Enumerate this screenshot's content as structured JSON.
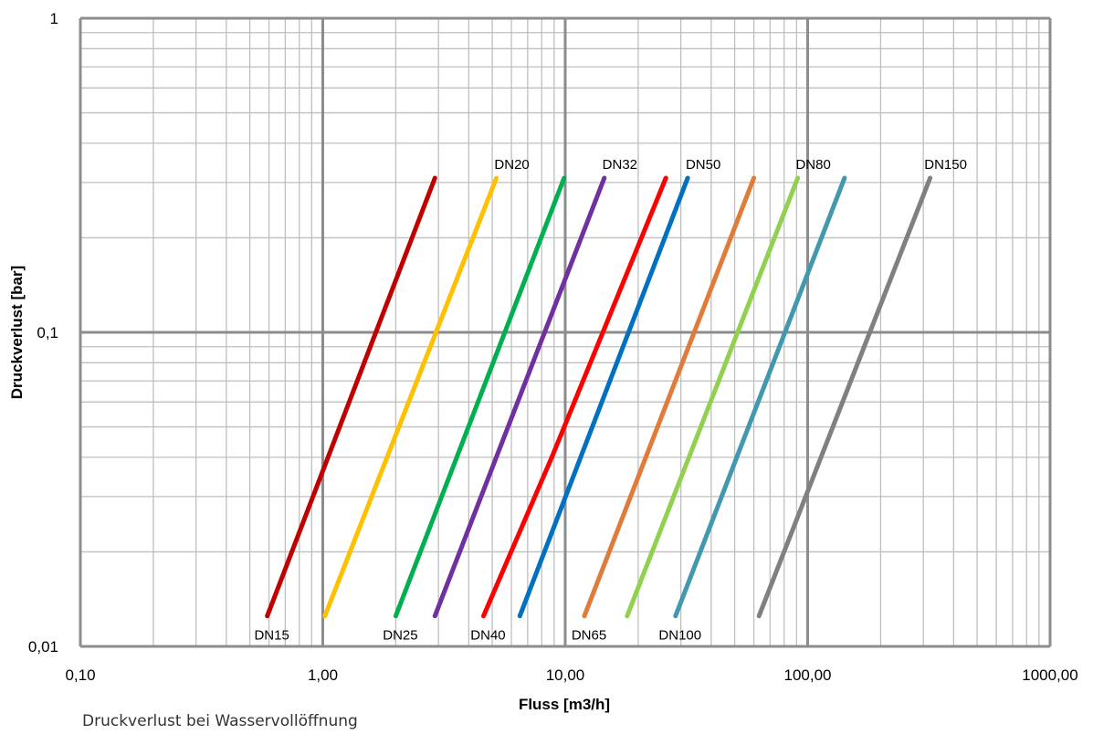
{
  "chart_data": {
    "type": "line",
    "xlabel": "Fluss [m3/h]",
    "ylabel": "Druckverlust [bar]",
    "xscale": "log",
    "yscale": "log",
    "xlim": [
      0.1,
      1000
    ],
    "ylim": [
      0.01,
      1
    ],
    "grid": true,
    "x_ticks": [
      {
        "value": 0.1,
        "label": "0,10"
      },
      {
        "value": 1,
        "label": "1,00"
      },
      {
        "value": 10,
        "label": "10,00"
      },
      {
        "value": 100,
        "label": "100,00"
      },
      {
        "value": 1000,
        "label": "1000,00"
      }
    ],
    "y_ticks": [
      {
        "value": 0.01,
        "label": "0,01"
      },
      {
        "value": 0.1,
        "label": "0,1"
      },
      {
        "value": 1,
        "label": "1"
      }
    ],
    "series": [
      {
        "name": "DN15",
        "color": "#C00000",
        "label_pos": "bottom",
        "points": [
          [
            0.59,
            0.0125
          ],
          [
            2.9,
            0.31
          ]
        ]
      },
      {
        "name": "DN20",
        "color": "#FFC000",
        "label_pos": "top",
        "points": [
          [
            1.02,
            0.0125
          ],
          [
            5.2,
            0.31
          ]
        ]
      },
      {
        "name": "DN25",
        "color": "#00B050",
        "label_pos": "bottom",
        "points": [
          [
            2.0,
            0.0125
          ],
          [
            9.9,
            0.31
          ]
        ]
      },
      {
        "name": "DN32",
        "color": "#7030A0",
        "label_pos": "top",
        "points": [
          [
            2.9,
            0.0125
          ],
          [
            14.5,
            0.31
          ]
        ]
      },
      {
        "name": "DN40",
        "color": "#FF0000",
        "label_pos": "bottom",
        "points": [
          [
            4.6,
            0.0125
          ],
          [
            8.8,
            0.04
          ],
          [
            26,
            0.31
          ]
        ]
      },
      {
        "name": "DN50",
        "color": "#0070C0",
        "label_pos": "top",
        "points": [
          [
            6.5,
            0.0125
          ],
          [
            32,
            0.31
          ]
        ]
      },
      {
        "name": "DN65",
        "color": "#E07B39",
        "label_pos": "bottom",
        "points": [
          [
            12,
            0.0125
          ],
          [
            60,
            0.31
          ]
        ]
      },
      {
        "name": "DN80",
        "color": "#92D050",
        "label_pos": "top",
        "points": [
          [
            18,
            0.0125
          ],
          [
            91,
            0.31
          ]
        ]
      },
      {
        "name": "DN100",
        "color": "#4198AF",
        "label_pos": "bottom",
        "points": [
          [
            28.5,
            0.0125
          ],
          [
            142,
            0.31
          ]
        ]
      },
      {
        "name": "DN150",
        "color": "#808080",
        "label_pos": "top",
        "points": [
          [
            63,
            0.0125
          ],
          [
            320,
            0.31
          ]
        ]
      }
    ]
  },
  "caption": "Druckverlust bei Wasservollöffnung"
}
